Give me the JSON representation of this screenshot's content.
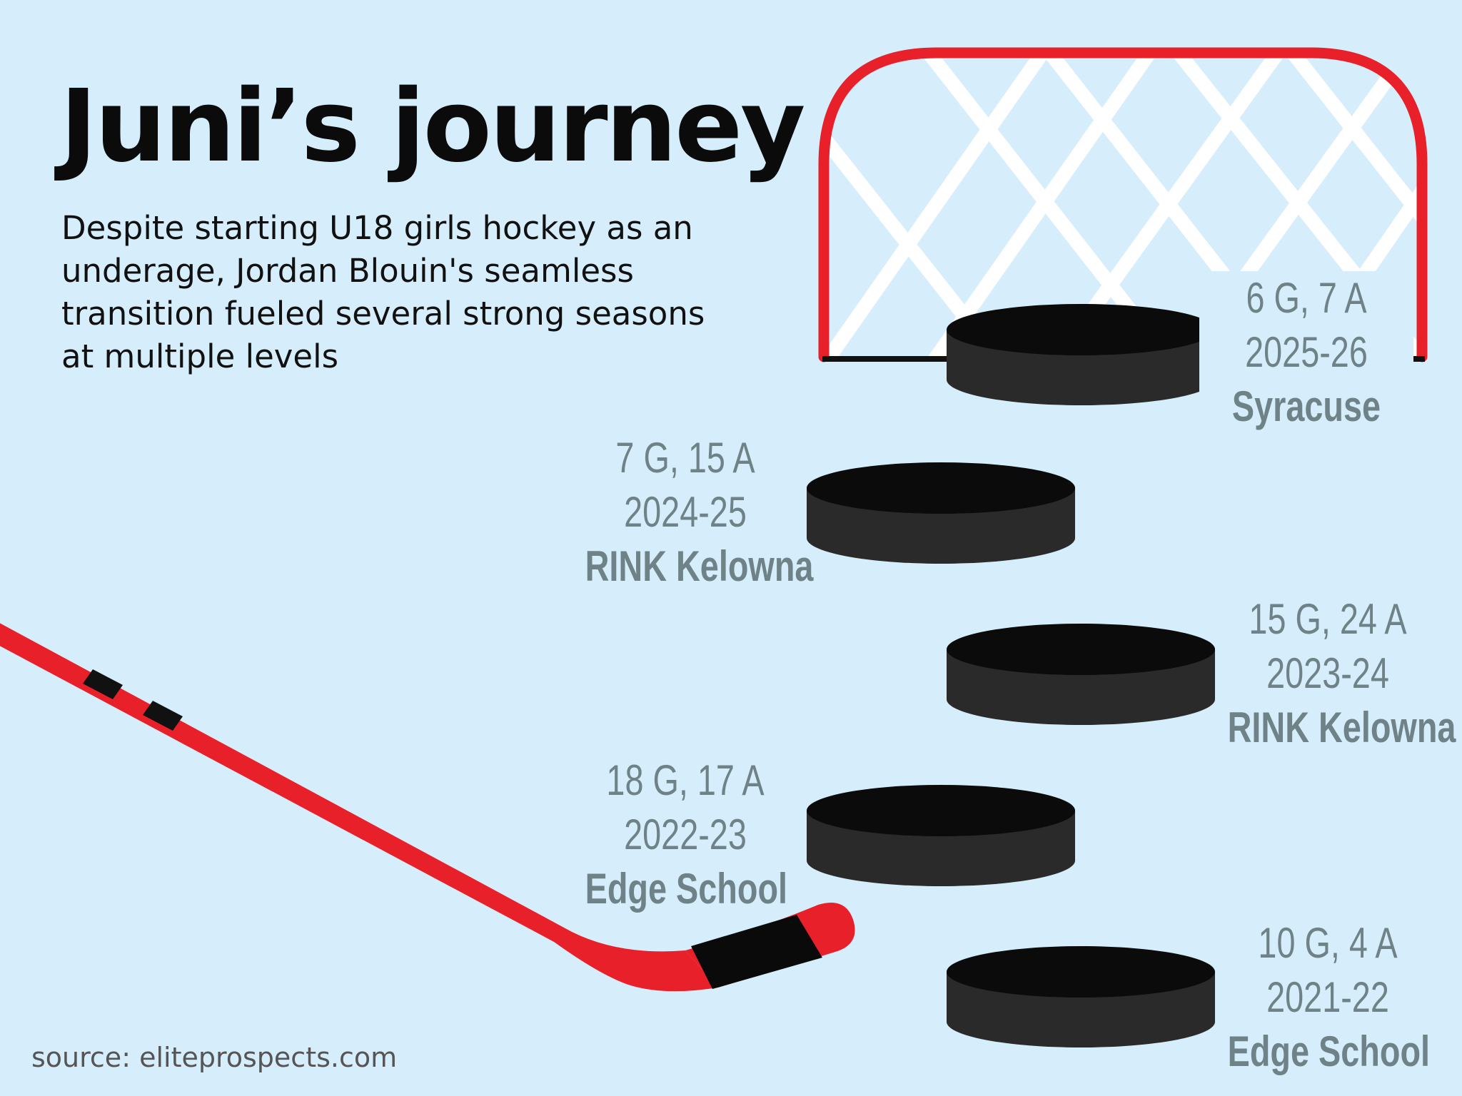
{
  "title": "Juni’s journey",
  "subtitle": "Despite starting U18 girls hockey as an underage, Jordan Blouin's seamless transition fueled several strong seasons at multiple levels",
  "seasons": [
    {
      "stats": "6 G, 7 A",
      "year": "2025-26",
      "team": "Syracuse"
    },
    {
      "stats": "7 G, 15 A",
      "year": "2024-25",
      "team": "RINK Kelowna"
    },
    {
      "stats": "15 G, 24 A",
      "year": "2023-24",
      "team": "RINK Kelowna"
    },
    {
      "stats": "18 G, 17 A",
      "year": "2022-23",
      "team": "Edge School"
    },
    {
      "stats": "10 G, 4 A",
      "year": "2021-22",
      "team": "Edge School"
    }
  ],
  "source": "source: eliteprospects.com",
  "colors": {
    "background": "#d6eefb",
    "goal_frame": "#e8202a",
    "net": "#ffffff",
    "puck": "#222222",
    "stick": "#e8202a",
    "label": "#6f8288"
  }
}
